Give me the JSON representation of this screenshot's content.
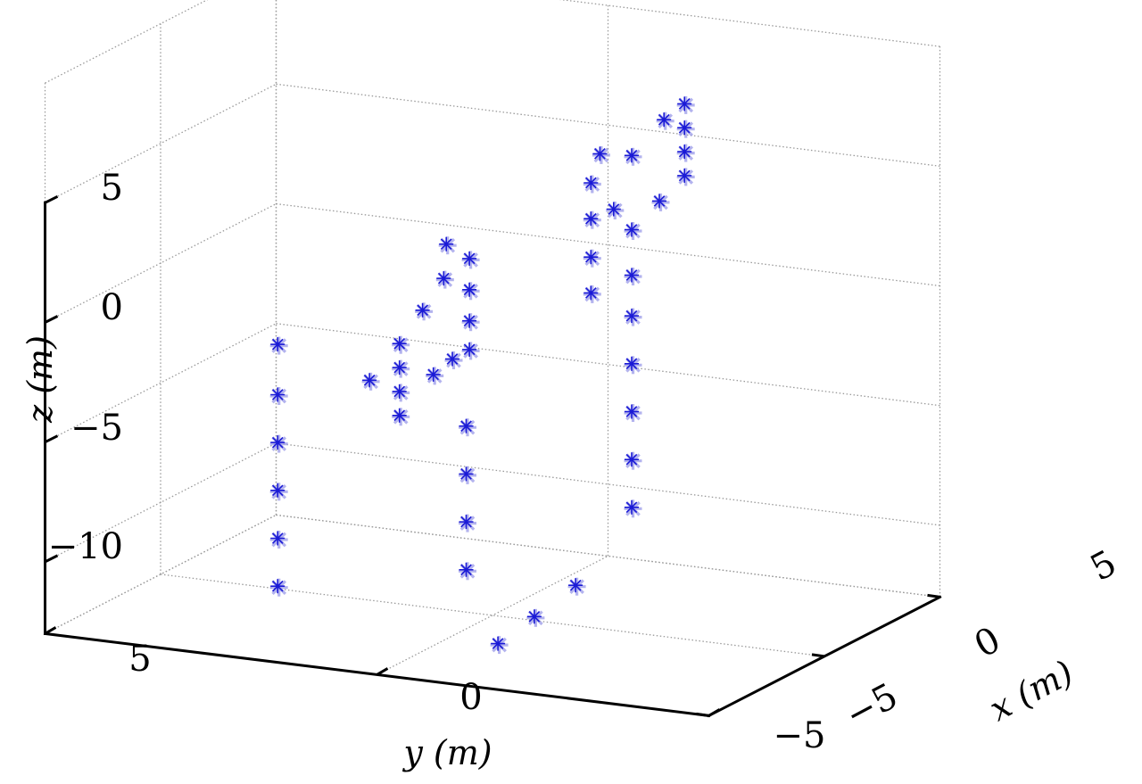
{
  "chart_data": {
    "type": "scatter",
    "projection": "3d",
    "xlabel": "x (m)",
    "ylabel": "y (m)",
    "zlabel": "z (m)",
    "x_ticks": [
      "−5",
      "0",
      "5"
    ],
    "y_ticks": [
      "5",
      "0",
      "−5"
    ],
    "z_ticks": [
      "5",
      "0",
      "−5",
      "−10"
    ],
    "xlim": [
      -5,
      5
    ],
    "ylim": [
      -5,
      5
    ],
    "zlim": [
      -13,
      5
    ],
    "grid": true,
    "marker": "asterisk",
    "marker_color": "#1a1ad6",
    "marker_shadow_color": "#9a9ae8",
    "points": [
      {
        "x": -4.7,
        "y": 1.6,
        "z": 0.1
      },
      {
        "x": -4.7,
        "y": 1.6,
        "z": -2
      },
      {
        "x": -4.7,
        "y": 1.6,
        "z": -4
      },
      {
        "x": -4.7,
        "y": 1.6,
        "z": -6
      },
      {
        "x": -4.7,
        "y": 1.6,
        "z": -8
      },
      {
        "x": -4.7,
        "y": 1.6,
        "z": -10
      },
      {
        "x": -4.6,
        "y": -0.2,
        "z": 0.7
      },
      {
        "x": -4.6,
        "y": -0.2,
        "z": -0.3
      },
      {
        "x": -4.6,
        "y": -0.2,
        "z": -1.3
      },
      {
        "x": -4.6,
        "y": -0.2,
        "z": -2.3
      },
      {
        "x": -3.6,
        "y": -0.2,
        "z": 1.6
      },
      {
        "x": -3.6,
        "y": 0.6,
        "z": -1.6
      },
      {
        "x": -2.4,
        "y": -0.1,
        "z": 2.3
      },
      {
        "x": -2.6,
        "y": -0.3,
        "z": -0.9
      },
      {
        "x": -2.0,
        "y": 0.0,
        "z": 3.5
      },
      {
        "x": -1.0,
        "y": 0.0,
        "z": 2.4
      },
      {
        "x": -1.0,
        "y": 0.0,
        "z": 1.1
      },
      {
        "x": -1.0,
        "y": 0.0,
        "z": -0.2
      },
      {
        "x": -1.0,
        "y": 0.0,
        "z": -1.4
      },
      {
        "x": -1.7,
        "y": 0.3,
        "z": -2.2
      },
      {
        "x": -0.5,
        "y": -2.0,
        "z": 4.9
      },
      {
        "x": 1.2,
        "y": -1.2,
        "z": 6.1
      },
      {
        "x": 1.1,
        "y": -1.1,
        "z": 4.9
      },
      {
        "x": 2.0,
        "y": -1.4,
        "z": 5.7
      },
      {
        "x": 3.4,
        "y": -1.4,
        "z": 6.5
      },
      {
        "x": 4.0,
        "y": -1.5,
        "z": 6.9
      },
      {
        "x": 4.0,
        "y": -1.5,
        "z": 5.9
      },
      {
        "x": 4.0,
        "y": -1.5,
        "z": 4.9
      },
      {
        "x": 4.0,
        "y": -1.5,
        "z": 3.9
      },
      {
        "x": 3.2,
        "y": -1.4,
        "z": 3.2
      },
      {
        "x": 2.0,
        "y": -1.4,
        "z": 2.6
      },
      {
        "x": 1.1,
        "y": -1.1,
        "z": 3.4
      },
      {
        "x": 1.1,
        "y": -1.1,
        "z": 1.8
      },
      {
        "x": 1.1,
        "y": -1.1,
        "z": 0.3
      },
      {
        "x": 2.0,
        "y": -1.4,
        "z": 0.7
      },
      {
        "x": 2.0,
        "y": -1.4,
        "z": -1.0
      },
      {
        "x": 2.0,
        "y": -1.4,
        "z": -3.0
      },
      {
        "x": 2.0,
        "y": -1.4,
        "z": -5.0
      },
      {
        "x": 2.0,
        "y": -1.4,
        "z": -7.0
      },
      {
        "x": 2.0,
        "y": -1.4,
        "z": -9.0
      },
      {
        "x": -2.0,
        "y": -0.3,
        "z": -4.0
      },
      {
        "x": -2.0,
        "y": -0.3,
        "z": -6.0
      },
      {
        "x": -2.0,
        "y": -0.3,
        "z": -8.0
      },
      {
        "x": -2.0,
        "y": -0.3,
        "z": -10.0
      },
      {
        "x": -3.5,
        "y": -1.3,
        "z": -12.0
      },
      {
        "x": -2.5,
        "y": -1.5,
        "z": -11.3
      },
      {
        "x": -1.0,
        "y": -1.6,
        "z": -10.7
      }
    ]
  }
}
